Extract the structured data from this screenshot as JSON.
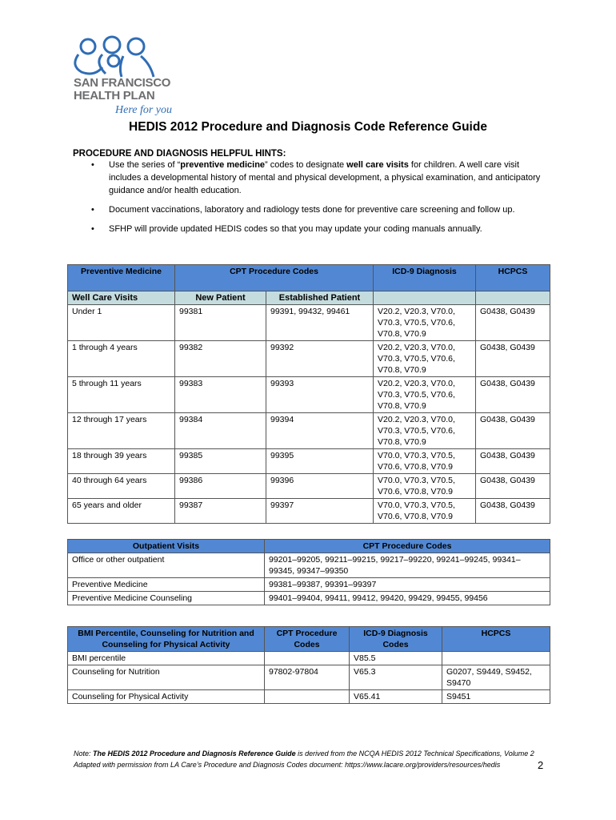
{
  "logo": {
    "line1": "SAN FRANCISCO",
    "line2": "HEALTH PLAN",
    "tagline": "Here for you",
    "brand_color": "#2f6db5"
  },
  "title": "HEDIS 2012 Procedure and Diagnosis Code Reference Guide",
  "hints": {
    "heading": "PROCEDURE AND DIAGNOSIS HELPFUL HINTS:",
    "items": [
      "Use the series of “<b>preventive medicine</b>” codes to designate <b>well care visits</b> for children. A well care visit includes a developmental history of mental and physical development, a physical examination, and anticipatory guidance and/or health education.",
      "Document vaccinations, laboratory and radiology tests done for preventive care screening and follow up.",
      "SFHP will provide updated HEDIS codes so that you may update your coding manuals annually."
    ]
  },
  "table1": {
    "headers": [
      "Preventive Medicine",
      "CPT Procedure Codes",
      "ICD-9 Diagnosis",
      "HCPCS"
    ],
    "subheaders": [
      "Well Care Visits",
      "New Patient",
      "Established Patient",
      "",
      ""
    ],
    "rows": [
      [
        "Under 1",
        "99381",
        "99391, 99432, 99461",
        "V20.2, V20.3, V70.0, V70.3, V70.5, V70.6, V70.8, V70.9",
        "G0438, G0439"
      ],
      [
        "1 through 4 years",
        "99382",
        "99392",
        "V20.2, V20.3, V70.0, V70.3, V70.5, V70.6, V70.8, V70.9",
        "G0438, G0439"
      ],
      [
        "5 through 11 years",
        "99383",
        "99393",
        "V20.2, V20.3, V70.0, V70.3, V70.5, V70.6, V70.8, V70.9",
        "G0438, G0439"
      ],
      [
        "12 through 17 years",
        "99384",
        "99394",
        "V20.2, V20.3, V70.0, V70.3, V70.5, V70.6, V70.8, V70.9",
        "G0438, G0439"
      ],
      [
        "18 through 39 years",
        "99385",
        "99395",
        "V70.0, V70.3, V70.5, V70.6, V70.8, V70.9",
        "G0438, G0439"
      ],
      [
        "40 through 64 years",
        "99386",
        "99396",
        "V70.0, V70.3, V70.5, V70.6, V70.8, V70.9",
        "G0438, G0439"
      ],
      [
        "65 years and older",
        "99387",
        "99397",
        "V70.0, V70.3, V70.5, V70.6, V70.8, V70.9",
        "G0438, G0439"
      ]
    ]
  },
  "table2": {
    "headers": [
      "Outpatient Visits",
      "CPT Procedure Codes"
    ],
    "rows": [
      [
        "Office or other outpatient",
        "99201–99205, 99211–99215, 99217–99220, 99241–99245, 99341–99345, 99347–99350"
      ],
      [
        "Preventive Medicine",
        "99381–99387, 99391–99397"
      ],
      [
        "Preventive Medicine Counseling",
        "99401–99404, 99411, 99412, 99420, 99429, 99455, 99456"
      ]
    ]
  },
  "table3": {
    "headers": [
      "BMI Percentile, Counseling for Nutrition and Counseling for Physical Activity",
      "CPT Procedure Codes",
      "ICD-9 Diagnosis Codes",
      "HCPCS"
    ],
    "rows": [
      [
        "BMI percentile",
        "",
        "V85.5",
        ""
      ],
      [
        "Counseling for Nutrition",
        "97802-97804",
        "V65.3",
        "G0207, S9449, S9452, S9470"
      ],
      [
        "Counseling for Physical Activity",
        "",
        "V65.41",
        "S9451"
      ]
    ]
  },
  "note": {
    "prefix": "Note: ",
    "bold": "The HEDIS 2012 Procedure and Diagnosis Reference Guide",
    "rest": " is derived from the NCQA HEDIS 2012 Technical Specifications, Volume 2",
    "line2": "Adapted with permission from LA Care’s Procedure and Diagnosis Codes document:  https://www.lacare.org/providers/resources/hedis"
  },
  "page_number": "2",
  "colors": {
    "header_blue": "#5288d3",
    "subheader_teal": "#c5dcdf"
  }
}
